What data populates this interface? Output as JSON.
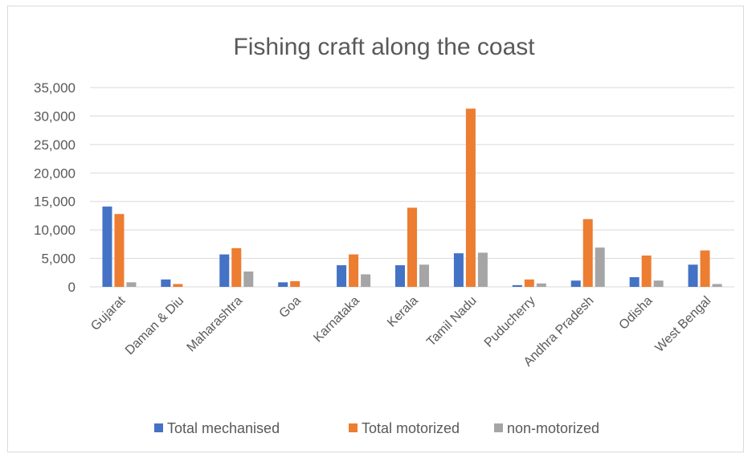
{
  "chart_data": {
    "type": "bar",
    "title": "Fishing craft along the coast",
    "categories": [
      "Gujarat",
      "Daman & Diu",
      "Maharashtra",
      "Goa",
      "Karnataka",
      "Kerala",
      "Tamil Nadu",
      "Puducherry",
      "Andhra Pradesh",
      "Odisha",
      "West Bengal"
    ],
    "series": [
      {
        "name": "Total mechanised",
        "color": "#4472c4",
        "values": [
          14100,
          1300,
          5700,
          800,
          3800,
          3800,
          5900,
          300,
          1100,
          1700,
          3900
        ]
      },
      {
        "name": "Total motorized",
        "color": "#ed7d31",
        "values": [
          12800,
          500,
          6800,
          1000,
          5700,
          13900,
          31300,
          1300,
          11900,
          5500,
          6400
        ]
      },
      {
        "name": "non-motorized",
        "color": "#a5a5a5",
        "values": [
          800,
          0,
          2700,
          0,
          2200,
          3900,
          6000,
          600,
          6900,
          1100,
          500
        ]
      }
    ],
    "ylim": [
      0,
      35000
    ],
    "yticks": [
      "0",
      "5,000",
      "10,000",
      "15,000",
      "20,000",
      "25,000",
      "30,000",
      "35,000"
    ],
    "ytick_values": [
      0,
      5000,
      10000,
      15000,
      20000,
      25000,
      30000,
      35000
    ],
    "grid": true,
    "legend_position": "bottom"
  }
}
